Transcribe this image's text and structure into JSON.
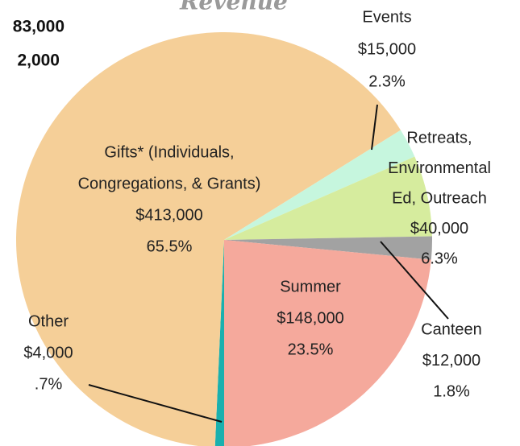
{
  "chart_data": {
    "type": "pie",
    "title": "Revenue",
    "annotations": [
      "83,000",
      "2,000"
    ],
    "slices": [
      {
        "name": [
          "Other"
        ],
        "color": "#1ab0ae",
        "amount": 4000,
        "amount_label": "$4,000",
        "percent": 0.7,
        "percent_label": ".7%"
      },
      {
        "name": [
          "Gifts* (Individuals,",
          "Congregations, & Grants)"
        ],
        "color": "#f5cf98",
        "amount": 413000,
        "amount_label": "$413,000",
        "percent": 65.5,
        "percent_label": "65.5%"
      },
      {
        "name": [
          "Events"
        ],
        "color": "#c6f6de",
        "amount": 15000,
        "amount_label": "$15,000",
        "percent": 2.3,
        "percent_label": "2.3%"
      },
      {
        "name": [
          "Retreats,",
          "Environmental",
          "Ed, Outreach"
        ],
        "color": "#d6ec9e",
        "amount": 40000,
        "amount_label": "$40,000",
        "percent": 6.3,
        "percent_label": "6.3%"
      },
      {
        "name": [
          "Canteen"
        ],
        "color": "#a2a2a2",
        "amount": 12000,
        "amount_label": "$12,000",
        "percent": 1.8,
        "percent_label": "1.8%"
      },
      {
        "name": [
          "Summer"
        ],
        "color": "#f5a99c",
        "amount": 148000,
        "amount_label": "$148,000",
        "percent": 23.5,
        "percent_label": "23.5%"
      }
    ]
  }
}
